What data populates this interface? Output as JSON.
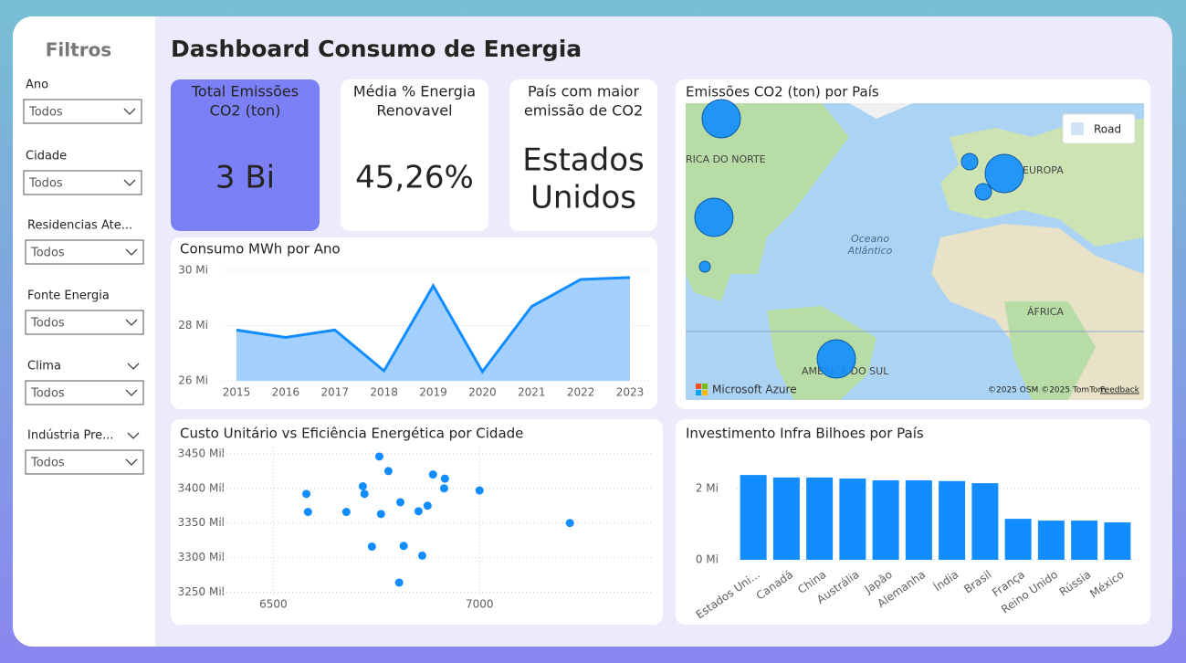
{
  "sidebar": {
    "title": "Filtros",
    "filters": [
      {
        "label": "Ano",
        "value": "Todos"
      },
      {
        "label": "Cidade",
        "value": "Todos"
      },
      {
        "label": "Residencias Ate...",
        "value": "Todos"
      },
      {
        "label": "Fonte Energia",
        "value": "Todos"
      },
      {
        "label": "Clima",
        "value": "Todos"
      },
      {
        "label": "Indústria Pre...",
        "value": "Todos"
      }
    ]
  },
  "header": {
    "title": "Dashboard Consumo de Energia"
  },
  "cards": [
    {
      "title_lines": [
        "Total Emissões",
        "CO2 (ton)"
      ],
      "value_lines": [
        "3 Bi"
      ]
    },
    {
      "title_lines": [
        "Média % Energia",
        "Renovavel"
      ],
      "value_lines": [
        "45,26%"
      ]
    },
    {
      "title_lines": [
        "País com maior",
        "emissão de CO2"
      ],
      "value_lines": [
        "Estados",
        "Unidos"
      ]
    }
  ],
  "map": {
    "title": "Emissões CO2 (ton) por País",
    "labels": [
      "RICA DO NORTE",
      "EUROPA",
      "Oceano",
      "Atlântico",
      "ÁFRICA",
      "AMÉRICA DO SUL"
    ],
    "style_button": "Road",
    "brand": "Microsoft Azure",
    "copyright": "©2025 OSM  ©2025 TomTom",
    "feedback": "Feedback"
  },
  "chart_data": [
    {
      "type": "line",
      "title": "Consumo MWh por Ano",
      "categories": [
        "2015",
        "2016",
        "2017",
        "2018",
        "2019",
        "2020",
        "2021",
        "2022",
        "2023"
      ],
      "values": [
        27.84,
        27.57,
        27.84,
        26.36,
        29.44,
        26.33,
        28.69,
        29.67,
        29.74
      ],
      "color": "#118dff",
      "ylim": [
        26,
        30
      ],
      "yticks": [
        {
          "value": 26,
          "label": "26 Mi"
        },
        {
          "value": 28,
          "label": "28 Mi"
        },
        {
          "value": 30,
          "label": "30 Mi"
        }
      ],
      "grid": true
    },
    {
      "type": "scatter",
      "title": "Custo Unitário vs Eficiência Energética por Cidade",
      "x": [
        6580,
        6584,
        6757,
        6779,
        6717,
        6721,
        6677,
        6761,
        6808,
        6887,
        6916,
        6914,
        6874,
        6852,
        7000,
        7219,
        6739,
        6816,
        6861,
        6805
      ],
      "values": [
        3392,
        3366,
        3446,
        3425,
        3403,
        3392,
        3366,
        3363,
        3380,
        3420,
        3414,
        3400,
        3375,
        3367,
        3397,
        3350,
        3316,
        3317,
        3303,
        3264
      ],
      "color": "#118dff",
      "xlim": [
        6280,
        7420
      ],
      "xticks": [
        6500,
        7000
      ],
      "ylim": [
        3235,
        3459
      ],
      "yticks": [
        {
          "value": 3250,
          "label": "3250 Mil"
        },
        {
          "value": 3300,
          "label": "3300 Mil"
        },
        {
          "value": 3350,
          "label": "3350 Mil"
        },
        {
          "value": 3400,
          "label": "3400 Mil"
        },
        {
          "value": 3450,
          "label": "3450 Mil"
        }
      ],
      "grid": true
    },
    {
      "type": "bar",
      "title": "Investimento Infra Bilhoes por País",
      "categories": [
        "Estados Uni...",
        "Canadá",
        "China",
        "Austrália",
        "Japão",
        "Alemanha",
        "Índia",
        "Brasil",
        "França",
        "Reino Unido",
        "Rússia",
        "México"
      ],
      "values": [
        2.38,
        2.31,
        2.31,
        2.28,
        2.23,
        2.23,
        2.21,
        2.15,
        1.15,
        1.1,
        1.1,
        1.05
      ],
      "color": "#118dff",
      "ylim": [
        0,
        2.64
      ],
      "yticks": [
        {
          "value": 0,
          "label": "0 Mi"
        },
        {
          "value": 2,
          "label": "2 Mi"
        }
      ],
      "grid": true
    }
  ]
}
